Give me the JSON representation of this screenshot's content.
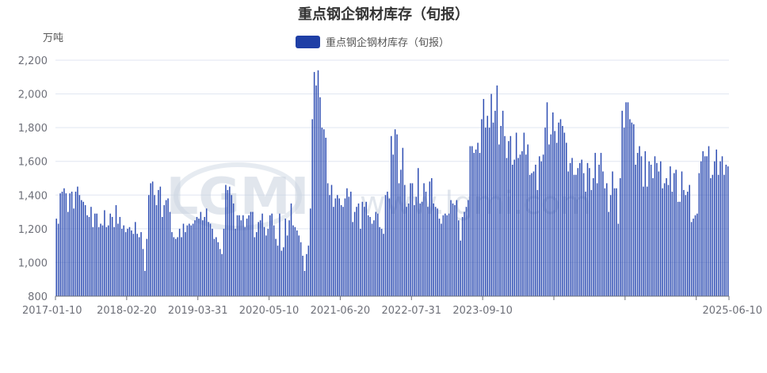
{
  "chart_data": {
    "type": "bar",
    "title": "重点钢企钢材库存（旬报）",
    "unit": "万吨",
    "legend": "重点钢企钢材库存（旬报）",
    "legend_position": "top-center",
    "bar_color": "#2f4eb3",
    "legend_color": "#1f3fa6",
    "grid": true,
    "ylim": [
      800,
      2200
    ],
    "y_ticks": [
      800,
      1000,
      1200,
      1400,
      1600,
      1800,
      2000,
      2200
    ],
    "y_tick_labels": [
      "800",
      "1,000",
      "1,200",
      "1,400",
      "1,600",
      "1,800",
      "2,000",
      "2,200"
    ],
    "x_tick_labels": [
      "2017-01-10",
      "2018-02-20",
      "2019-03-31",
      "2020-05-10",
      "2021-06-20",
      "2022-07-31",
      "2023-09-10",
      "2025-06-10"
    ],
    "values": [
      1260,
      1230,
      1410,
      1420,
      1440,
      1410,
      1300,
      1410,
      1420,
      1320,
      1420,
      1450,
      1400,
      1370,
      1360,
      1340,
      1280,
      1270,
      1330,
      1210,
      1290,
      1290,
      1210,
      1230,
      1220,
      1310,
      1210,
      1220,
      1290,
      1270,
      1210,
      1340,
      1230,
      1270,
      1200,
      1220,
      1180,
      1200,
      1210,
      1190,
      1170,
      1240,
      1170,
      1150,
      1180,
      1080,
      950,
      1140,
      1400,
      1470,
      1480,
      1400,
      1340,
      1430,
      1450,
      1270,
      1340,
      1370,
      1380,
      1300,
      1180,
      1150,
      1140,
      1150,
      1200,
      1150,
      1230,
      1180,
      1220,
      1230,
      1220,
      1230,
      1250,
      1270,
      1260,
      1300,
      1250,
      1270,
      1320,
      1240,
      1230,
      1200,
      1140,
      1150,
      1120,
      1080,
      1050,
      1200,
      1460,
      1430,
      1450,
      1400,
      1350,
      1200,
      1280,
      1280,
      1250,
      1280,
      1210,
      1260,
      1280,
      1300,
      1300,
      1150,
      1180,
      1240,
      1250,
      1290,
      1210,
      1160,
      1200,
      1280,
      1290,
      1220,
      1140,
      1100,
      1290,
      1070,
      1090,
      1260,
      1160,
      1250,
      1350,
      1220,
      1210,
      1190,
      1160,
      1120,
      1040,
      950,
      1050,
      1100,
      1320,
      1850,
      2130,
      2050,
      2140,
      1980,
      1800,
      1790,
      1740,
      1470,
      1400,
      1460,
      1330,
      1380,
      1400,
      1380,
      1340,
      1330,
      1380,
      1440,
      1390,
      1420,
      1240,
      1300,
      1330,
      1350,
      1200,
      1360,
      1330,
      1360,
      1280,
      1270,
      1230,
      1250,
      1300,
      1290,
      1210,
      1200,
      1170,
      1400,
      1420,
      1380,
      1750,
      1640,
      1790,
      1760,
      1470,
      1550,
      1680,
      1460,
      1330,
      1350,
      1470,
      1470,
      1340,
      1390,
      1560,
      1350,
      1360,
      1470,
      1420,
      1330,
      1480,
      1500,
      1350,
      1330,
      1320,
      1260,
      1230,
      1280,
      1290,
      1280,
      1290,
      1370,
      1350,
      1340,
      1370,
      1250,
      1130,
      1270,
      1300,
      1330,
      1370,
      1690,
      1690,
      1650,
      1670,
      1710,
      1650,
      1850,
      1970,
      1800,
      1870,
      1800,
      2000,
      1830,
      1900,
      2050,
      1700,
      1810,
      1900,
      1750,
      1620,
      1720,
      1750,
      1580,
      1610,
      1770,
      1620,
      1640,
      1660,
      1770,
      1640,
      1700,
      1520,
      1530,
      1540,
      1580,
      1430,
      1630,
      1600,
      1640,
      1800,
      1950,
      1700,
      1760,
      1890,
      1780,
      1710,
      1830,
      1850,
      1810,
      1770,
      1710,
      1540,
      1590,
      1620,
      1520,
      1520,
      1560,
      1590,
      1610,
      1530,
      1420,
      1590,
      1560,
      1430,
      1500,
      1650,
      1470,
      1580,
      1650,
      1540,
      1440,
      1470,
      1300,
      1400,
      1540,
      1440,
      1440,
      1230,
      1500,
      1900,
      1800,
      1950,
      1950,
      1850,
      1830,
      1820,
      1580,
      1650,
      1690,
      1630,
      1450,
      1660,
      1450,
      1600,
      1580,
      1500,
      1630,
      1590,
      1540,
      1600,
      1440,
      1470,
      1500,
      1460,
      1570,
      1420,
      1530,
      1550,
      1360,
      1360,
      1540,
      1430,
      1400,
      1420,
      1460,
      1240,
      1260,
      1280,
      1290,
      1530,
      1600,
      1660,
      1630,
      1630,
      1690,
      1500,
      1520,
      1600,
      1670,
      1520,
      1600,
      1630,
      1520,
      1580,
      1570
    ]
  },
  "watermark": {
    "logo": "LGMI",
    "url": "www.lgmi.com"
  }
}
